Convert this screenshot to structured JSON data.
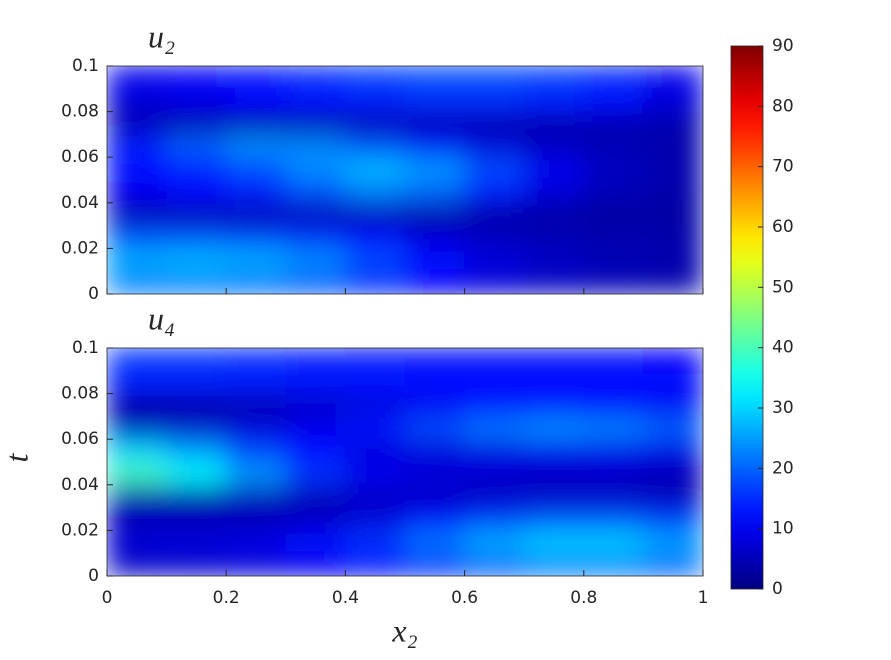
{
  "chart_data": [
    {
      "type": "heatmap",
      "title": "u₂",
      "ylabel": "t",
      "x": [
        0.05,
        0.15,
        0.25,
        0.35,
        0.45,
        0.55,
        0.65,
        0.75,
        0.85,
        0.95
      ],
      "y": [
        0.005,
        0.015,
        0.025,
        0.035,
        0.045,
        0.055,
        0.065,
        0.075,
        0.085,
        0.095
      ],
      "z": [
        [
          22,
          22,
          21,
          19,
          15,
          11,
          8,
          6,
          5,
          4
        ],
        [
          27,
          28,
          27,
          24,
          18,
          12,
          8,
          6,
          5,
          4
        ],
        [
          18,
          18,
          17,
          15,
          12,
          8,
          6,
          5,
          4,
          4
        ],
        [
          4,
          4,
          4,
          4,
          4,
          3,
          3,
          3,
          3,
          3
        ],
        [
          10,
          12,
          14,
          18,
          22,
          20,
          14,
          8,
          5,
          4
        ],
        [
          12,
          14,
          18,
          24,
          28,
          25,
          18,
          10,
          6,
          4
        ],
        [
          14,
          20,
          24,
          23,
          18,
          12,
          8,
          6,
          5,
          4
        ],
        [
          4,
          4,
          4,
          4,
          4,
          4,
          4,
          4,
          4,
          4
        ],
        [
          8,
          9,
          11,
          13,
          14,
          15,
          15,
          14,
          12,
          8
        ],
        [
          10,
          11,
          13,
          15,
          17,
          18,
          18,
          17,
          15,
          10
        ]
      ],
      "xlim": [
        0,
        1
      ],
      "xticks": [
        0,
        0.2,
        0.4,
        0.6,
        0.8,
        1
      ],
      "ylim": [
        0,
        0.1
      ],
      "yticks": [
        0,
        0.02,
        0.04,
        0.06,
        0.08,
        0.1
      ],
      "colormap": "jet",
      "zlim": [
        0,
        90
      ],
      "zticks": [
        0,
        10,
        20,
        30,
        40,
        50,
        60,
        70,
        80,
        90
      ]
    },
    {
      "type": "heatmap",
      "title": "u₄",
      "xlabel": "x₂",
      "x": [
        0.05,
        0.15,
        0.25,
        0.35,
        0.45,
        0.55,
        0.65,
        0.75,
        0.85,
        0.95
      ],
      "y": [
        0.005,
        0.015,
        0.025,
        0.035,
        0.045,
        0.055,
        0.065,
        0.075,
        0.085,
        0.095
      ],
      "z": [
        [
          6,
          7,
          8,
          10,
          12,
          15,
          19,
          22,
          22,
          20
        ],
        [
          8,
          8,
          9,
          12,
          16,
          22,
          27,
          30,
          30,
          26
        ],
        [
          5,
          5,
          5,
          6,
          8,
          12,
          16,
          18,
          18,
          16
        ],
        [
          4,
          4,
          5,
          5,
          6,
          6,
          6,
          6,
          6,
          5
        ],
        [
          40,
          34,
          25,
          16,
          10,
          8,
          7,
          6,
          6,
          5
        ],
        [
          30,
          25,
          17,
          12,
          8,
          8,
          9,
          10,
          10,
          9
        ],
        [
          6,
          7,
          8,
          10,
          13,
          18,
          22,
          24,
          23,
          20
        ],
        [
          3,
          3,
          4,
          6,
          8,
          10,
          12,
          12,
          11,
          10
        ],
        [
          14,
          14,
          14,
          13,
          13,
          12,
          12,
          12,
          12,
          12
        ],
        [
          16,
          16,
          15,
          14,
          13,
          12,
          12,
          12,
          12,
          11
        ]
      ],
      "xlim": [
        0,
        1
      ],
      "xticks": [
        0,
        0.2,
        0.4,
        0.6,
        0.8,
        1
      ],
      "ylim": [
        0,
        0.1
      ],
      "yticks": [
        0,
        0.02,
        0.04,
        0.06,
        0.08,
        0.1
      ],
      "colormap": "jet"
    }
  ]
}
